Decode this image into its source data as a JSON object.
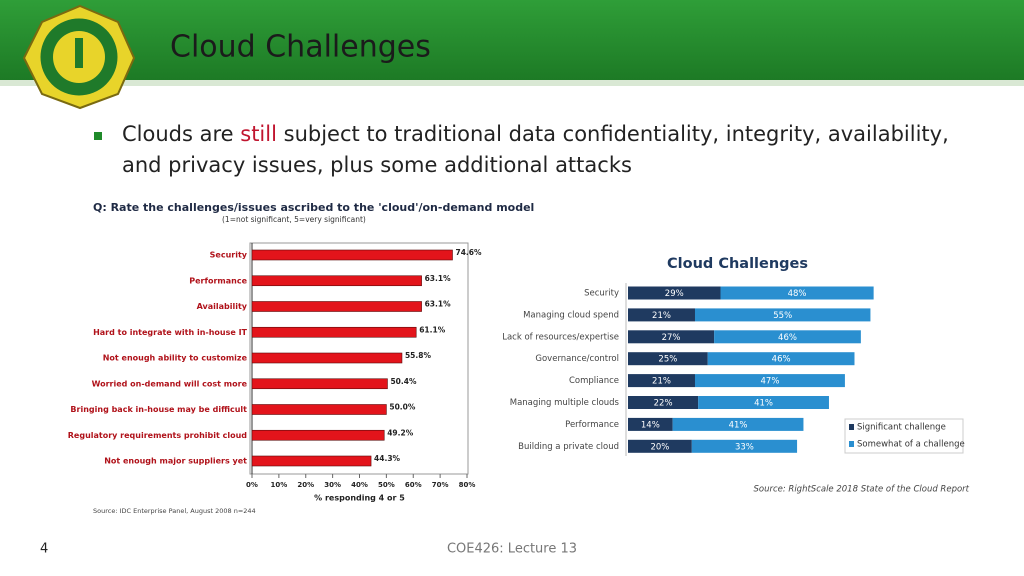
{
  "header": {
    "title": "Cloud Challenges"
  },
  "bullet": {
    "before": "Clouds are",
    "highlight": "still",
    "after": "subject to traditional data confidentiality, integrity, availability, and privacy issues, plus some additional attacks"
  },
  "footer": {
    "page": "4",
    "course": "COE426: Lecture 13"
  },
  "chart_data": [
    {
      "type": "bar",
      "orientation": "horizontal",
      "title": "Q: Rate the challenges/issues ascribed to the 'cloud'/on-demand model",
      "subtitle": "(1=not significant, 5=very significant)",
      "categories": [
        "Security",
        "Performance",
        "Availability",
        "Hard to integrate with in-house IT",
        "Not enough ability to customize",
        "Worried on-demand will cost more",
        "Bringing back in-house may be difficult",
        "Regulatory requirements prohibit cloud",
        "Not enough major suppliers yet"
      ],
      "values": [
        74.6,
        63.1,
        63.1,
        61.1,
        55.8,
        50.4,
        50.0,
        49.2,
        44.3
      ],
      "value_labels": [
        "74.6%",
        "63.1%",
        "63.1%",
        "61.1%",
        "55.8%",
        "50.4%",
        "50.0%",
        "49.2%",
        "44.3%"
      ],
      "color": "#e3141b",
      "xlim": [
        0,
        80
      ],
      "xticks": [
        {
          "value": 0,
          "label": "0%"
        },
        {
          "value": 10,
          "label": "10%"
        },
        {
          "value": 20,
          "label": "20%"
        },
        {
          "value": 30,
          "label": "30%"
        },
        {
          "value": 40,
          "label": "40%"
        },
        {
          "value": 50,
          "label": "50%"
        },
        {
          "value": 60,
          "label": "60%"
        },
        {
          "value": 70,
          "label": "70%"
        },
        {
          "value": 80,
          "label": "80%"
        }
      ],
      "xlabel": "% responding 4 or 5",
      "source": "Source: IDC Enterprise Panel, August 2008 n=244"
    },
    {
      "type": "stacked_bar",
      "orientation": "horizontal",
      "title": "Cloud Challenges",
      "categories": [
        "Security",
        "Managing cloud spend",
        "Lack of resources/expertise",
        "Governance/control",
        "Compliance",
        "Managing multiple clouds",
        "Performance",
        "Building a private cloud"
      ],
      "series": [
        {
          "name": "Significant challenge",
          "color": "#1f3a60",
          "values": [
            29,
            21,
            27,
            25,
            21,
            22,
            14,
            20
          ],
          "value_labels": [
            "29%",
            "21%",
            "27%",
            "25%",
            "21%",
            "22%",
            "14%",
            "20%"
          ]
        },
        {
          "name": "Somewhat of a challenge",
          "color": "#2a8fd0",
          "values": [
            48,
            55,
            46,
            46,
            47,
            41,
            41,
            33
          ],
          "value_labels": [
            "48%",
            "55%",
            "46%",
            "46%",
            "47%",
            "41%",
            "41%",
            "33%"
          ]
        }
      ],
      "legend": "lower right",
      "source": "Source: RightScale 2018 State of the Cloud Report"
    }
  ]
}
